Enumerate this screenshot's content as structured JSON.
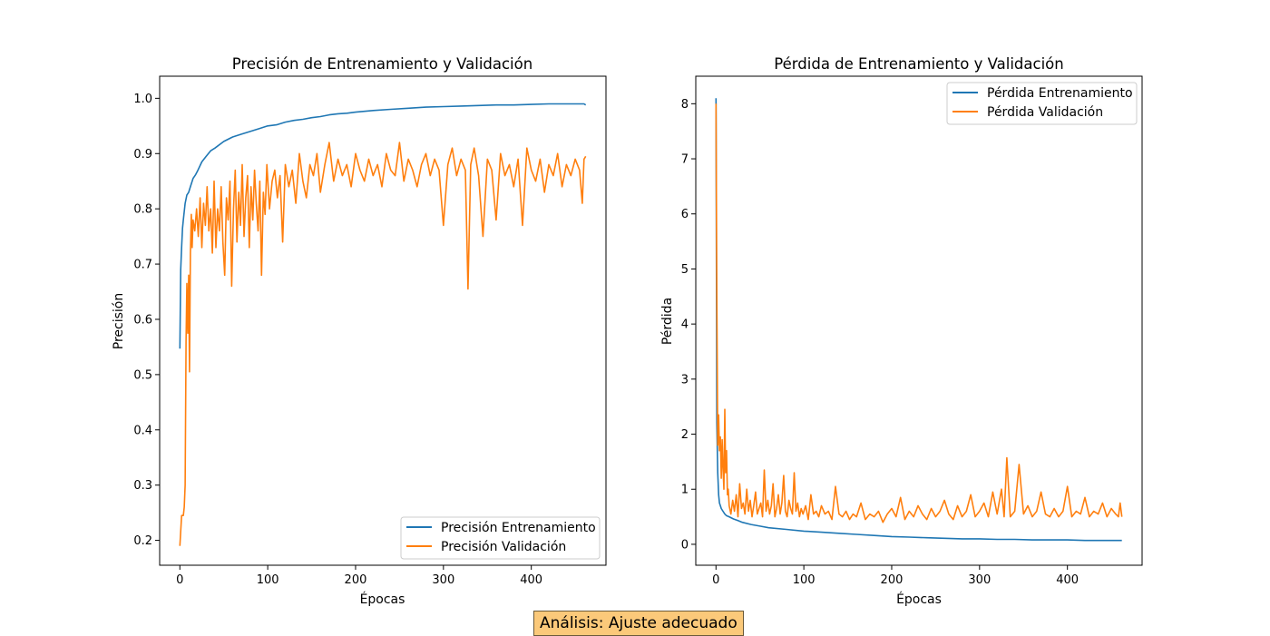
{
  "analysis": "Análisis: Ajuste adecuado",
  "colors": {
    "train": "#1f77b4",
    "val": "#ff7f0e"
  },
  "chart_data": [
    {
      "type": "line",
      "title": "Precisión de Entrenamiento y Validación",
      "xlabel": "Épocas",
      "ylabel": "Precisión",
      "xlim": [
        -23,
        485
      ],
      "ylim": [
        0.155,
        1.04
      ],
      "xticks": [
        0,
        100,
        200,
        300,
        400
      ],
      "yticks": [
        0.2,
        0.3,
        0.4,
        0.5,
        0.6,
        0.7,
        0.8,
        0.9,
        1.0
      ],
      "ytick_labels": [
        "0.2",
        "0.3",
        "0.4",
        "0.5",
        "0.6",
        "0.7",
        "0.8",
        "0.9",
        "1.0"
      ],
      "legend_position": "lower-right",
      "series": [
        {
          "name": "Precisión Entrenamiento",
          "color": "#1f77b4",
          "x": [
            0,
            1,
            2,
            3,
            4,
            5,
            6,
            8,
            10,
            12,
            15,
            18,
            20,
            25,
            30,
            35,
            40,
            50,
            60,
            70,
            80,
            90,
            100,
            110,
            120,
            130,
            140,
            150,
            160,
            170,
            180,
            190,
            200,
            220,
            240,
            260,
            280,
            300,
            320,
            340,
            360,
            380,
            400,
            420,
            440,
            460,
            462
          ],
          "values": [
            0.547,
            0.69,
            0.73,
            0.765,
            0.78,
            0.795,
            0.81,
            0.825,
            0.83,
            0.84,
            0.855,
            0.862,
            0.868,
            0.885,
            0.895,
            0.905,
            0.91,
            0.922,
            0.93,
            0.935,
            0.94,
            0.945,
            0.95,
            0.952,
            0.957,
            0.96,
            0.962,
            0.965,
            0.967,
            0.97,
            0.972,
            0.973,
            0.975,
            0.978,
            0.98,
            0.982,
            0.984,
            0.985,
            0.986,
            0.987,
            0.988,
            0.988,
            0.989,
            0.99,
            0.99,
            0.99,
            0.988
          ]
        },
        {
          "name": "Precisión Validación",
          "color": "#ff7f0e",
          "x": [
            0,
            2,
            4,
            5,
            6,
            7,
            8,
            9,
            10,
            11,
            12,
            13,
            14,
            15,
            17,
            19,
            21,
            23,
            25,
            27,
            29,
            31,
            33,
            35,
            37,
            39,
            41,
            43,
            45,
            47,
            49,
            51,
            53,
            55,
            57,
            59,
            61,
            63,
            65,
            67,
            69,
            71,
            73,
            75,
            77,
            79,
            81,
            83,
            85,
            87,
            89,
            91,
            93,
            95,
            97,
            99,
            102,
            105,
            108,
            111,
            114,
            117,
            120,
            124,
            128,
            132,
            136,
            140,
            144,
            148,
            152,
            156,
            160,
            165,
            170,
            175,
            180,
            185,
            190,
            195,
            200,
            205,
            210,
            215,
            220,
            225,
            230,
            235,
            240,
            245,
            250,
            255,
            260,
            265,
            270,
            275,
            280,
            285,
            290,
            295,
            300,
            305,
            310,
            315,
            320,
            325,
            328,
            331,
            335,
            340,
            345,
            350,
            355,
            360,
            365,
            370,
            375,
            380,
            385,
            390,
            395,
            400,
            405,
            410,
            415,
            420,
            425,
            430,
            435,
            440,
            445,
            450,
            455,
            458,
            460,
            462
          ],
          "values": [
            0.19,
            0.245,
            0.245,
            0.26,
            0.3,
            0.56,
            0.665,
            0.575,
            0.68,
            0.505,
            0.72,
            0.79,
            0.73,
            0.78,
            0.76,
            0.8,
            0.75,
            0.82,
            0.73,
            0.81,
            0.77,
            0.84,
            0.76,
            0.8,
            0.72,
            0.85,
            0.73,
            0.8,
            0.76,
            0.84,
            0.74,
            0.68,
            0.82,
            0.78,
            0.85,
            0.66,
            0.8,
            0.87,
            0.74,
            0.83,
            0.77,
            0.88,
            0.75,
            0.82,
            0.86,
            0.73,
            0.84,
            0.78,
            0.87,
            0.81,
            0.76,
            0.85,
            0.68,
            0.83,
            0.79,
            0.88,
            0.8,
            0.85,
            0.87,
            0.82,
            0.86,
            0.74,
            0.88,
            0.84,
            0.87,
            0.81,
            0.9,
            0.85,
            0.82,
            0.88,
            0.86,
            0.9,
            0.83,
            0.88,
            0.92,
            0.85,
            0.89,
            0.86,
            0.88,
            0.84,
            0.9,
            0.87,
            0.85,
            0.89,
            0.86,
            0.88,
            0.84,
            0.9,
            0.87,
            0.86,
            0.92,
            0.85,
            0.89,
            0.87,
            0.84,
            0.88,
            0.9,
            0.86,
            0.89,
            0.87,
            0.77,
            0.88,
            0.91,
            0.86,
            0.89,
            0.87,
            0.655,
            0.88,
            0.91,
            0.86,
            0.75,
            0.89,
            0.87,
            0.78,
            0.9,
            0.86,
            0.88,
            0.84,
            0.89,
            0.77,
            0.91,
            0.87,
            0.85,
            0.89,
            0.83,
            0.88,
            0.86,
            0.9,
            0.84,
            0.88,
            0.86,
            0.89,
            0.87,
            0.81,
            0.89,
            0.895
          ]
        }
      ]
    },
    {
      "type": "line",
      "title": "Pérdida de Entrenamiento y Validación",
      "xlabel": "Épocas",
      "ylabel": "Pérdida",
      "xlim": [
        -23,
        485
      ],
      "ylim": [
        -0.38,
        8.5
      ],
      "xticks": [
        0,
        100,
        200,
        300,
        400
      ],
      "yticks": [
        0,
        1,
        2,
        3,
        4,
        5,
        6,
        7,
        8
      ],
      "ytick_labels": [
        "0",
        "1",
        "2",
        "3",
        "4",
        "5",
        "6",
        "7",
        "8"
      ],
      "legend_position": "top-right",
      "series": [
        {
          "name": "Pérdida Entrenamiento",
          "color": "#1f77b4",
          "x": [
            0,
            1,
            2,
            3,
            4,
            5,
            6,
            8,
            10,
            12,
            15,
            20,
            25,
            30,
            40,
            50,
            60,
            80,
            100,
            120,
            140,
            160,
            180,
            200,
            220,
            240,
            260,
            280,
            300,
            320,
            340,
            360,
            380,
            400,
            420,
            440,
            460,
            462
          ],
          "values": [
            8.1,
            2.2,
            1.3,
            0.9,
            0.75,
            0.7,
            0.65,
            0.6,
            0.55,
            0.52,
            0.5,
            0.46,
            0.43,
            0.4,
            0.36,
            0.33,
            0.3,
            0.27,
            0.24,
            0.22,
            0.2,
            0.18,
            0.16,
            0.14,
            0.13,
            0.12,
            0.11,
            0.1,
            0.1,
            0.09,
            0.09,
            0.08,
            0.08,
            0.08,
            0.07,
            0.07,
            0.07,
            0.07
          ]
        },
        {
          "name": "Pérdida Validación",
          "color": "#ff7f0e",
          "x": [
            0,
            1,
            2,
            3,
            4,
            5,
            6,
            7,
            8,
            9,
            10,
            11,
            12,
            13,
            14,
            15,
            17,
            19,
            21,
            23,
            25,
            27,
            29,
            31,
            33,
            35,
            37,
            39,
            41,
            43,
            45,
            47,
            49,
            51,
            53,
            55,
            57,
            59,
            61,
            63,
            65,
            67,
            69,
            71,
            73,
            75,
            77,
            79,
            81,
            83,
            85,
            87,
            89,
            91,
            93,
            95,
            97,
            99,
            102,
            105,
            108,
            111,
            114,
            117,
            120,
            124,
            128,
            132,
            136,
            140,
            144,
            148,
            152,
            156,
            160,
            165,
            170,
            175,
            180,
            185,
            190,
            195,
            200,
            205,
            210,
            215,
            220,
            225,
            230,
            235,
            240,
            245,
            250,
            255,
            260,
            265,
            270,
            275,
            280,
            285,
            290,
            295,
            300,
            305,
            310,
            315,
            320,
            325,
            328,
            331,
            335,
            340,
            345,
            350,
            355,
            360,
            365,
            370,
            375,
            380,
            385,
            390,
            395,
            400,
            405,
            410,
            415,
            420,
            425,
            430,
            435,
            440,
            445,
            450,
            455,
            458,
            460,
            462
          ],
          "values": [
            8.0,
            4.5,
            1.8,
            2.35,
            1.7,
            1.95,
            1.2,
            1.9,
            1.4,
            1.0,
            2.45,
            1.3,
            1.7,
            0.9,
            1.0,
            0.7,
            0.55,
            0.8,
            0.6,
            0.9,
            0.5,
            1.1,
            0.65,
            0.75,
            0.55,
            1.0,
            0.6,
            0.8,
            0.5,
            0.7,
            0.95,
            0.55,
            0.65,
            0.75,
            0.5,
            1.35,
            0.6,
            0.8,
            0.55,
            0.7,
            1.1,
            0.5,
            0.65,
            0.9,
            0.55,
            0.75,
            1.25,
            0.6,
            0.5,
            0.8,
            0.65,
            0.55,
            1.3,
            0.6,
            0.75,
            0.5,
            0.65,
            0.55,
            0.7,
            0.45,
            0.9,
            0.55,
            0.6,
            0.5,
            0.7,
            0.55,
            0.6,
            0.45,
            1.05,
            0.55,
            0.5,
            0.6,
            0.45,
            0.55,
            0.5,
            0.75,
            0.45,
            0.55,
            0.5,
            0.6,
            0.4,
            0.55,
            0.65,
            0.5,
            0.85,
            0.45,
            0.6,
            0.5,
            0.7,
            0.55,
            0.45,
            0.65,
            0.5,
            0.6,
            0.8,
            0.55,
            0.45,
            0.7,
            0.5,
            0.6,
            0.9,
            0.5,
            0.6,
            0.75,
            0.5,
            0.95,
            0.55,
            1.0,
            0.5,
            1.57,
            0.5,
            0.6,
            1.45,
            0.55,
            0.7,
            0.5,
            0.6,
            0.95,
            0.55,
            0.5,
            0.65,
            0.5,
            0.6,
            1.05,
            0.5,
            0.6,
            0.55,
            0.85,
            0.5,
            0.6,
            0.55,
            0.75,
            0.5,
            0.65,
            0.55,
            0.5,
            0.75,
            0.5
          ]
        }
      ]
    }
  ]
}
